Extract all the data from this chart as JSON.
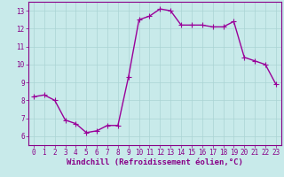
{
  "x": [
    0,
    1,
    2,
    3,
    4,
    5,
    6,
    7,
    8,
    9,
    10,
    11,
    12,
    13,
    14,
    15,
    16,
    17,
    18,
    19,
    20,
    21,
    22,
    23
  ],
  "y": [
    8.2,
    8.3,
    8.0,
    6.9,
    6.7,
    6.2,
    6.3,
    6.6,
    6.6,
    9.3,
    12.5,
    12.7,
    13.1,
    13.0,
    12.2,
    12.2,
    12.2,
    12.1,
    12.1,
    12.4,
    10.4,
    10.2,
    10.0,
    8.9
  ],
  "line_color": "#990099",
  "marker": "+",
  "marker_size": 4,
  "bg_color": "#c8eaea",
  "grid_color": "#aad4d4",
  "xlabel": "Windchill (Refroidissement éolien,°C)",
  "ylim": [
    5.5,
    13.5
  ],
  "xlim": [
    -0.5,
    23.5
  ],
  "yticks": [
    6,
    7,
    8,
    9,
    10,
    11,
    12,
    13
  ],
  "xticks": [
    0,
    1,
    2,
    3,
    4,
    5,
    6,
    7,
    8,
    9,
    10,
    11,
    12,
    13,
    14,
    15,
    16,
    17,
    18,
    19,
    20,
    21,
    22,
    23
  ],
  "tick_color": "#880088",
  "tick_fontsize": 5.5,
  "label_fontsize": 6.5,
  "spine_color": "#880088",
  "line_width": 1.0,
  "marker_edge_width": 0.8
}
